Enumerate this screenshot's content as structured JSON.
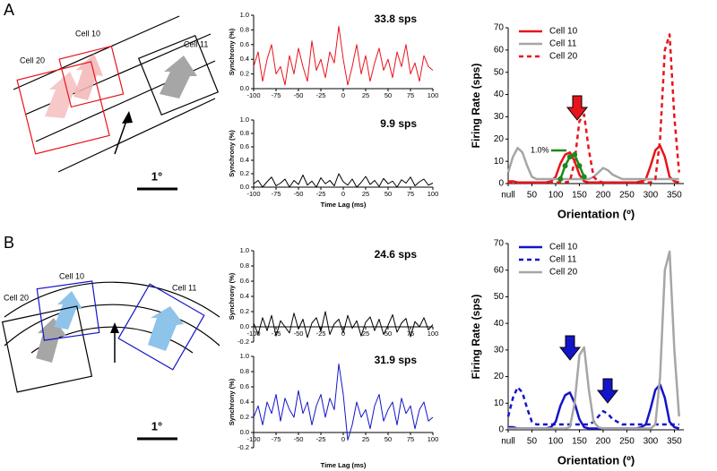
{
  "panels": [
    {
      "label": "A",
      "cells": [
        "Cell 10",
        "Cell 20",
        "Cell 11"
      ],
      "scale": "1°"
    },
    {
      "label": "B",
      "cells": [
        "Cell 10",
        "Cell 20",
        "Cell 11"
      ],
      "scale": "1°"
    }
  ],
  "chart_data": [
    {
      "type": "line",
      "title": "33.8 sps",
      "ylabel": "Synchrony (%)",
      "x": [
        -100,
        -95,
        -90,
        -85,
        -80,
        -75,
        -70,
        -65,
        -60,
        -55,
        -50,
        -45,
        -40,
        -35,
        -30,
        -25,
        -20,
        -15,
        -10,
        -5,
        0,
        5,
        10,
        15,
        20,
        25,
        30,
        35,
        40,
        45,
        50,
        55,
        60,
        65,
        70,
        75,
        80,
        85,
        90,
        95,
        100
      ],
      "series": [
        {
          "color": "#e8141c",
          "values": [
            0.3,
            0.5,
            0.1,
            0.4,
            0.6,
            0.2,
            0.3,
            0.05,
            0.45,
            0.2,
            0.55,
            0.3,
            0.1,
            0.65,
            0.25,
            0.4,
            0.15,
            0.5,
            0.35,
            0.85,
            0.4,
            0.05,
            0.3,
            0.6,
            0.2,
            0.45,
            0.1,
            0.35,
            0.55,
            0.25,
            0.4,
            0.15,
            0.5,
            0.3,
            0.6,
            0.2,
            0.35,
            0.1,
            0.45,
            0.3,
            0.25
          ]
        }
      ],
      "xlim": [
        -100,
        100
      ],
      "ylim": [
        0,
        1
      ],
      "xticks": [
        -100,
        -75,
        -50,
        -25,
        0,
        25,
        50,
        75,
        100
      ],
      "yticks": [
        {
          "value": 0,
          "label": "0.0"
        },
        0.2,
        0.4,
        0.6,
        0.8,
        {
          "value": 1,
          "label": "1.0"
        }
      ]
    },
    {
      "type": "line",
      "title": "9.9 sps",
      "ylabel": "Synchrony (%)",
      "xlabel": "Time Lag (ms)",
      "x": [
        -100,
        -95,
        -90,
        -85,
        -80,
        -75,
        -70,
        -65,
        -60,
        -55,
        -50,
        -45,
        -40,
        -35,
        -30,
        -25,
        -20,
        -15,
        -10,
        -5,
        0,
        5,
        10,
        15,
        20,
        25,
        30,
        35,
        40,
        45,
        50,
        55,
        60,
        65,
        70,
        75,
        80,
        85,
        90,
        95,
        100
      ],
      "series": [
        {
          "color": "#000000",
          "values": [
            0.05,
            0.1,
            0.0,
            0.08,
            0.15,
            0.02,
            0.06,
            0.12,
            0.0,
            0.1,
            0.04,
            0.18,
            0.03,
            0.09,
            0.0,
            0.14,
            0.05,
            0.1,
            0.02,
            0.2,
            0.08,
            0.03,
            0.12,
            0.0,
            0.07,
            0.16,
            0.04,
            0.1,
            0.01,
            0.13,
            0.05,
            0.09,
            0.0,
            0.11,
            0.06,
            0.15,
            0.02,
            0.08,
            0.12,
            0.03,
            0.06
          ]
        }
      ],
      "xlim": [
        -100,
        100
      ],
      "ylim": [
        0,
        1
      ],
      "xticks": [
        -100,
        -75,
        -50,
        -25,
        0,
        25,
        50,
        75,
        100
      ],
      "yticks": [
        {
          "value": 0,
          "label": "0.0"
        },
        0.2,
        0.4,
        0.6,
        0.8,
        {
          "value": 1,
          "label": "1.0"
        }
      ]
    },
    {
      "type": "line",
      "ylabel": "Firing Rate (sps)",
      "xlabel": "Orientation (º)",
      "legend": "upper left",
      "x": [
        0,
        10,
        20,
        30,
        40,
        50,
        60,
        70,
        80,
        90,
        100,
        110,
        120,
        130,
        140,
        150,
        160,
        170,
        180,
        190,
        200,
        210,
        220,
        230,
        240,
        250,
        260,
        270,
        280,
        290,
        300,
        310,
        320,
        330,
        340,
        350,
        360
      ],
      "xlim": [
        0,
        370
      ],
      "ylim": [
        0,
        70
      ],
      "xticks": [
        {
          "value": 0,
          "label": "null"
        },
        50,
        100,
        150,
        200,
        250,
        300,
        350
      ],
      "yticks": [
        0,
        10,
        20,
        30,
        40,
        50,
        60,
        70
      ],
      "series": [
        {
          "name": "Cell 10",
          "color": "#e8141c",
          "linestyle": "solid",
          "values": [
            1,
            1,
            0.5,
            0.5,
            0.5,
            0.5,
            0.5,
            0.5,
            0.5,
            1,
            3,
            9,
            13,
            14,
            10,
            4,
            1,
            0.5,
            0.5,
            0.5,
            0.5,
            0.5,
            0.5,
            0.5,
            0.5,
            0.5,
            0.5,
            0.5,
            1,
            2,
            8,
            15,
            17,
            12,
            3,
            1,
            0.5
          ]
        },
        {
          "name": "Cell 11",
          "color": "#a6a6a6",
          "linestyle": "solid",
          "values": [
            5,
            12,
            16,
            14,
            8,
            3,
            2,
            2,
            2,
            2,
            2,
            2,
            2,
            2,
            2,
            2,
            2,
            2,
            3,
            5,
            7,
            6,
            4,
            3,
            2,
            2,
            2,
            2,
            2,
            2,
            2,
            2,
            2,
            2,
            2,
            2,
            2
          ]
        },
        {
          "name": "Cell 20",
          "color": "#e8141c",
          "linestyle": "dashed",
          "values": [
            0.5,
            0.5,
            0.5,
            0.5,
            0.5,
            0.5,
            0.5,
            0.5,
            0.5,
            0.5,
            0.5,
            0.5,
            0.5,
            1,
            10,
            28,
            31,
            15,
            3,
            1,
            0.5,
            0.5,
            0.5,
            0.5,
            0.5,
            0.5,
            0.5,
            0.5,
            0.5,
            0.5,
            0.5,
            2,
            20,
            60,
            67,
            30,
            5
          ]
        },
        {
          "color": "#1a8a1a",
          "linestyle": "solid",
          "marker": "circle",
          "values": [
            null,
            null,
            null,
            null,
            null,
            null,
            null,
            null,
            null,
            null,
            null,
            2,
            8,
            12,
            13,
            8,
            3,
            null,
            null,
            null,
            null,
            null,
            null,
            null,
            null,
            null,
            null,
            null,
            null,
            null,
            null,
            null,
            null,
            null,
            null,
            null,
            null
          ]
        }
      ],
      "annotations": [
        {
          "text": "1.0%"
        }
      ]
    },
    {
      "type": "line",
      "title": "24.6 sps",
      "ylabel": "Synchrony (%)",
      "x": [
        -100,
        -95,
        -90,
        -85,
        -80,
        -75,
        -70,
        -65,
        -60,
        -55,
        -50,
        -45,
        -40,
        -35,
        -30,
        -25,
        -20,
        -15,
        -10,
        -5,
        0,
        5,
        10,
        15,
        20,
        25,
        30,
        35,
        40,
        45,
        50,
        55,
        60,
        65,
        70,
        75,
        80,
        85,
        90,
        95,
        100
      ],
      "series": [
        {
          "color": "#000000",
          "values": [
            0.05,
            -0.1,
            0.12,
            -0.05,
            0.15,
            -0.12,
            0.08,
            0.0,
            -0.08,
            0.18,
            -0.03,
            0.1,
            -0.14,
            0.05,
            0.12,
            -0.06,
            0.2,
            -0.1,
            0.04,
            0.1,
            -0.08,
            0.15,
            -0.02,
            0.08,
            -0.12,
            0.06,
            0.13,
            -0.05,
            0.1,
            -0.1,
            0.02,
            0.16,
            -0.07,
            0.05,
            0.11,
            -0.13,
            0.07,
            0.0,
            0.12,
            -0.04,
            0.03
          ]
        }
      ],
      "xlim": [
        -100,
        100
      ],
      "ylim": [
        -0.2,
        1
      ],
      "xticks": [
        -100,
        -75,
        -50,
        -25,
        0,
        25,
        50,
        75,
        100
      ],
      "yticks": [
        -0.2,
        {
          "value": 0,
          "label": "0.0"
        },
        0.2,
        0.4,
        0.6,
        0.8,
        {
          "value": 1,
          "label": "1.0"
        }
      ]
    },
    {
      "type": "line",
      "title": "31.9 sps",
      "ylabel": "Synchrony (%)",
      "xlabel": "Time Lag (ms)",
      "x": [
        -100,
        -95,
        -90,
        -85,
        -80,
        -75,
        -70,
        -65,
        -60,
        -55,
        -50,
        -45,
        -40,
        -35,
        -30,
        -25,
        -20,
        -15,
        -10,
        -5,
        0,
        5,
        10,
        15,
        20,
        25,
        30,
        35,
        40,
        45,
        50,
        55,
        60,
        65,
        70,
        75,
        80,
        85,
        90,
        95,
        100
      ],
      "series": [
        {
          "color": "#1414c8",
          "values": [
            0.2,
            0.35,
            0.1,
            0.4,
            0.25,
            0.5,
            0.15,
            0.45,
            0.3,
            0.2,
            0.55,
            0.25,
            0.4,
            0.1,
            0.35,
            0.5,
            0.2,
            0.45,
            0.3,
            0.9,
            0.5,
            -0.1,
            0.1,
            0.4,
            0.2,
            0.3,
            0.05,
            0.35,
            0.5,
            0.15,
            0.3,
            0.4,
            0.1,
            0.45,
            0.25,
            0.35,
            0.05,
            0.3,
            0.4,
            0.15,
            0.2
          ]
        }
      ],
      "xlim": [
        -100,
        100
      ],
      "ylim": [
        -0.2,
        1
      ],
      "xticks": [
        -100,
        -75,
        -50,
        -25,
        0,
        25,
        50,
        75,
        100
      ],
      "yticks": [
        -0.2,
        {
          "value": 0,
          "label": "0.0"
        },
        0.2,
        0.4,
        0.6,
        0.8,
        {
          "value": 1,
          "label": "1.0"
        }
      ]
    },
    {
      "type": "line",
      "ylabel": "Firing Rate (sps)",
      "xlabel": "Orientation (º)",
      "legend": "upper left",
      "x": [
        0,
        10,
        20,
        30,
        40,
        50,
        60,
        70,
        80,
        90,
        100,
        110,
        120,
        130,
        140,
        150,
        160,
        170,
        180,
        190,
        200,
        210,
        220,
        230,
        240,
        250,
        260,
        270,
        280,
        290,
        300,
        310,
        320,
        330,
        340,
        350,
        360
      ],
      "xlim": [
        0,
        370
      ],
      "ylim": [
        0,
        70
      ],
      "xticks": [
        {
          "value": 0,
          "label": "null"
        },
        50,
        100,
        150,
        200,
        250,
        300,
        350
      ],
      "yticks": [
        0,
        10,
        20,
        30,
        40,
        50,
        60,
        70
      ],
      "series": [
        {
          "name": "Cell 10",
          "color": "#1414c8",
          "linestyle": "solid",
          "values": [
            1,
            1,
            0.5,
            0.5,
            0.5,
            0.5,
            0.5,
            0.5,
            0.5,
            1,
            3,
            9,
            13,
            14,
            10,
            4,
            1,
            0.5,
            0.5,
            0.5,
            0.5,
            0.5,
            0.5,
            0.5,
            0.5,
            0.5,
            0.5,
            0.5,
            1,
            2,
            8,
            15,
            17,
            12,
            3,
            1,
            0.5
          ]
        },
        {
          "name": "Cell 11",
          "color": "#1414c8",
          "linestyle": "dashed",
          "values": [
            5,
            12,
            16,
            14,
            8,
            3,
            2,
            2,
            2,
            2,
            2,
            2,
            2,
            2,
            2,
            2,
            2,
            2,
            3,
            5,
            7,
            6,
            4,
            3,
            2,
            2,
            2,
            2,
            2,
            2,
            2,
            2,
            2,
            2,
            2,
            2,
            2
          ]
        },
        {
          "name": "Cell 20",
          "color": "#a6a6a6",
          "linestyle": "solid",
          "values": [
            0.5,
            0.5,
            0.5,
            0.5,
            0.5,
            0.5,
            0.5,
            0.5,
            0.5,
            0.5,
            0.5,
            0.5,
            0.5,
            1,
            10,
            28,
            31,
            15,
            3,
            1,
            0.5,
            0.5,
            0.5,
            0.5,
            0.5,
            0.5,
            0.5,
            0.5,
            0.5,
            0.5,
            0.5,
            2,
            20,
            60,
            67,
            30,
            5
          ]
        }
      ]
    }
  ]
}
